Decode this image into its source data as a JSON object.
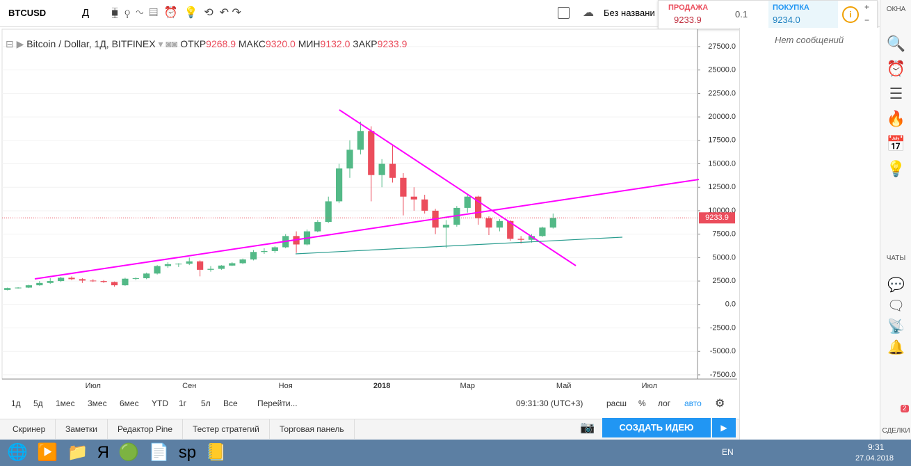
{
  "toolbar": {
    "symbol": "BTCUSD",
    "interval": "Д",
    "layout_name": "Без названи",
    "sell_label": "ПРОДАЖА",
    "sell_price": "9233.9",
    "spread": "0.1",
    "buy_label": "ПОКУПКА",
    "buy_price": "9234.0"
  },
  "legend": {
    "instrument": "Bitcoin / Dollar, 1Д, BITFINEX",
    "open_label": "ОТКР",
    "open": "9268.9",
    "high_label": "МАКС",
    "high": "9320.0",
    "low_label": "МИН",
    "low": "9132.0",
    "close_label": "ЗАКР",
    "close": "9233.9"
  },
  "chart_data": {
    "type": "candlestick",
    "up_color": "#53b987",
    "down_color": "#eb4d5c",
    "categories": [
      null,
      null,
      null,
      null,
      null,
      null,
      null,
      null,
      "Июл",
      null,
      null,
      null,
      null,
      null,
      null,
      null,
      null,
      "Сен",
      null,
      null,
      null,
      null,
      null,
      null,
      null,
      null,
      "Ноя",
      null,
      null,
      null,
      null,
      null,
      null,
      null,
      null,
      "2018",
      null,
      null,
      null,
      null,
      null,
      null,
      null,
      "Мар",
      null,
      null,
      null,
      null,
      null,
      null,
      null,
      null,
      "Май",
      null,
      null,
      null,
      null,
      null,
      null,
      null,
      "Июл",
      null,
      null,
      null,
      null
    ],
    "ohlc": [
      [
        1550,
        1800,
        1500,
        1750
      ],
      [
        1750,
        1850,
        1700,
        1800
      ],
      [
        1800,
        2100,
        1750,
        2050
      ],
      [
        2050,
        2500,
        2000,
        2300
      ],
      [
        2300,
        2800,
        2200,
        2500
      ],
      [
        2500,
        2950,
        2400,
        2850
      ],
      [
        2850,
        3000,
        2600,
        2700
      ],
      [
        2700,
        2800,
        2300,
        2550
      ],
      [
        2550,
        2700,
        2400,
        2500
      ],
      [
        2500,
        2600,
        2300,
        2400
      ],
      [
        2400,
        2450,
        1900,
        2050
      ],
      [
        2050,
        2850,
        2000,
        2750
      ],
      [
        2750,
        2900,
        2600,
        2800
      ],
      [
        2800,
        3400,
        2700,
        3300
      ],
      [
        3300,
        4200,
        3200,
        4100
      ],
      [
        4100,
        4500,
        3900,
        4300
      ],
      [
        4300,
        4400,
        4000,
        4350
      ],
      [
        4350,
        5000,
        4200,
        4600
      ],
      [
        4600,
        4700,
        3000,
        3700
      ],
      [
        3700,
        4100,
        3500,
        3800
      ],
      [
        3800,
        4200,
        3700,
        4150
      ],
      [
        4150,
        4500,
        4100,
        4400
      ],
      [
        4400,
        4900,
        4300,
        4800
      ],
      [
        4800,
        5800,
        4700,
        5600
      ],
      [
        5600,
        6000,
        5400,
        5700
      ],
      [
        5700,
        6200,
        5500,
        6100
      ],
      [
        6100,
        7500,
        6000,
        7300
      ],
      [
        7300,
        7800,
        5500,
        6400
      ],
      [
        6400,
        8000,
        6300,
        7800
      ],
      [
        7800,
        9000,
        7700,
        8800
      ],
      [
        8800,
        11500,
        8700,
        11000
      ],
      [
        11000,
        15000,
        10800,
        14500
      ],
      [
        14500,
        17500,
        13500,
        16500
      ],
      [
        16500,
        19500,
        16000,
        18500
      ],
      [
        18500,
        19000,
        11000,
        13800
      ],
      [
        13800,
        15500,
        12500,
        15000
      ],
      [
        15000,
        17000,
        13000,
        13500
      ],
      [
        13500,
        14000,
        9500,
        11500
      ],
      [
        11500,
        12500,
        10000,
        11200
      ],
      [
        11200,
        11700,
        9700,
        10000
      ],
      [
        10000,
        10200,
        7500,
        8200
      ],
      [
        8200,
        9000,
        6000,
        8500
      ],
      [
        8500,
        10500,
        8300,
        10300
      ],
      [
        10300,
        11700,
        9800,
        11500
      ],
      [
        11500,
        11600,
        8500,
        9200
      ],
      [
        9200,
        9400,
        7400,
        8200
      ],
      [
        8200,
        9100,
        7800,
        8900
      ],
      [
        8900,
        9000,
        6800,
        7000
      ],
      [
        7000,
        7300,
        6500,
        6900
      ],
      [
        6900,
        7500,
        6600,
        7300
      ],
      [
        7300,
        8300,
        7200,
        8200
      ],
      [
        8200,
        9700,
        8100,
        9233.9
      ],
      null,
      null,
      null,
      null,
      null,
      null,
      null,
      null,
      null,
      null,
      null,
      null,
      null
    ],
    "ylim": [
      -7950,
      29350
    ],
    "yticks": [
      {
        "value": -7500,
        "label": "-7500.0"
      },
      {
        "value": -5000,
        "label": "-5000.0"
      },
      {
        "value": -2500,
        "label": "-2500.0"
      },
      {
        "value": 0,
        "label": "0.0"
      },
      {
        "value": 2500,
        "label": "2500.0"
      },
      {
        "value": 5000,
        "label": "5000.0"
      },
      {
        "value": 7500,
        "label": "7500.0"
      },
      {
        "value": 10000,
        "label": "10000.0"
      },
      {
        "value": 12500,
        "label": "12500.0"
      },
      {
        "value": 15000,
        "label": "15000.0"
      },
      {
        "value": 17500,
        "label": "17500.0"
      },
      {
        "value": 20000,
        "label": "20000.0"
      },
      {
        "value": 22500,
        "label": "22500.0"
      },
      {
        "value": 25000,
        "label": "25000.0"
      },
      {
        "value": 27500,
        "label": "27500.0"
      }
    ]
  },
  "bottom_bar": {
    "ranges": [
      "1д",
      "5д",
      "1мес",
      "3мес",
      "6мес",
      "YTD",
      "1г",
      "5л",
      "Все"
    ],
    "goto": "Перейти...",
    "clock": "09:31:30 (UTC+3)",
    "options": [
      "расш",
      "%",
      "лог",
      "авто"
    ]
  },
  "tabs": [
    "Скринер",
    "Заметки",
    "Редактор Pine",
    "Тестер стратегий",
    "Торговая панель"
  ],
  "create_idea": "СОЗДАТЬ ИДЕЮ",
  "side_panel": {
    "no_messages": "Нет сообщений",
    "windows": "ОКНА",
    "chats": "ЧАТЫ",
    "deals": "СДЕЛКИ",
    "badge": "2"
  },
  "taskbar": {
    "lang": "EN",
    "time": "9:31",
    "date": "27.04.2018"
  }
}
